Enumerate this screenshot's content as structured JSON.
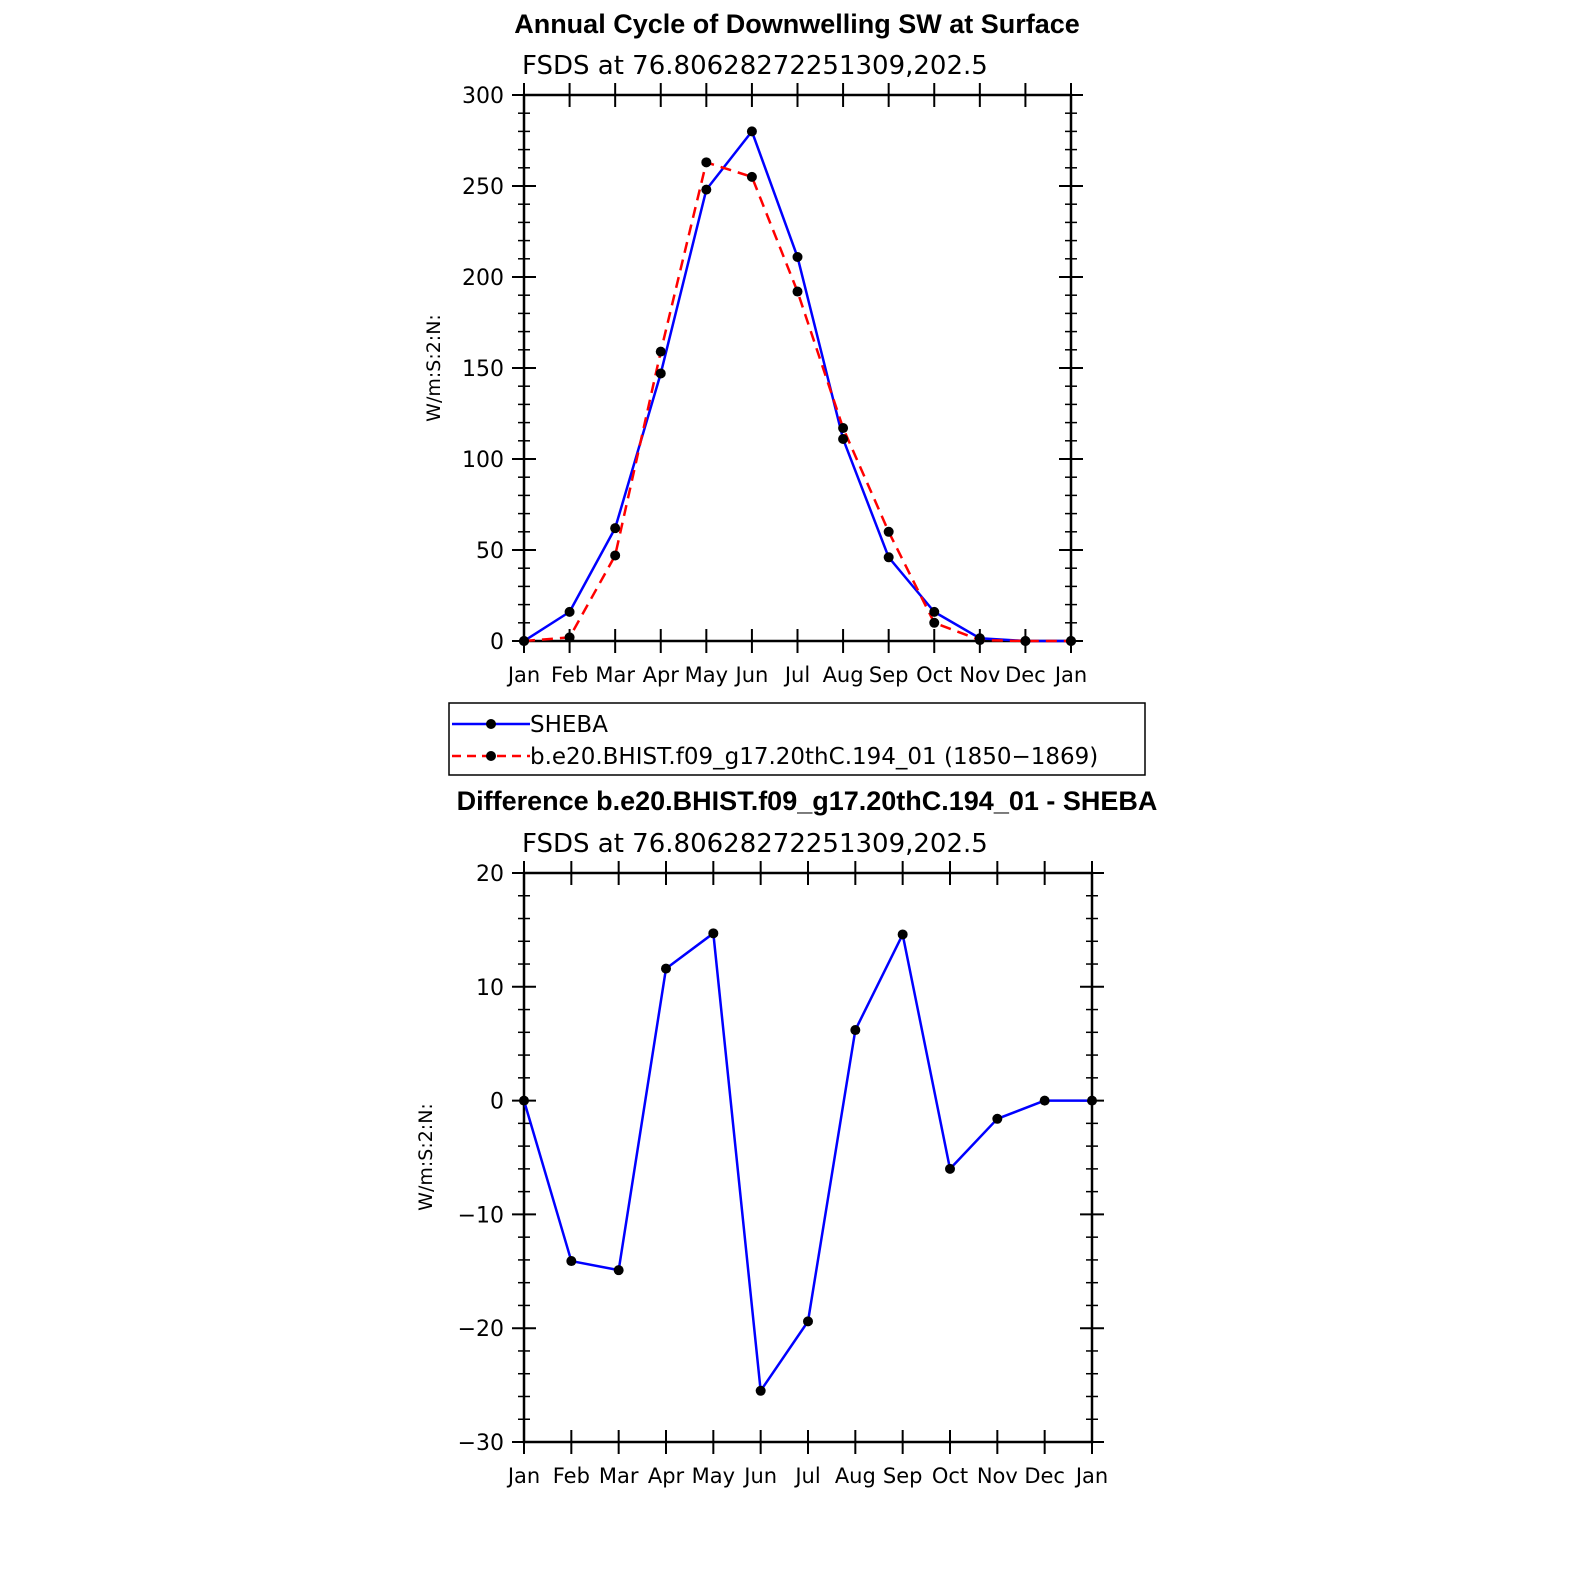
{
  "chart_data": [
    {
      "type": "line",
      "title": "Annual Cycle of Downwelling SW at Surface",
      "subtitle": "FSDS at 76.80628272251309,202.5",
      "xlabel": "",
      "ylabel": "W/m:S:2:N:",
      "categories": [
        "Jan",
        "Feb",
        "Mar",
        "Apr",
        "May",
        "Jun",
        "Jul",
        "Aug",
        "Sep",
        "Oct",
        "Nov",
        "Dec",
        "Jan"
      ],
      "ylim": [
        0,
        300
      ],
      "yticks": [
        "0",
        "50",
        "100",
        "150",
        "200",
        "250",
        "300"
      ],
      "series": [
        {
          "name": "SHEBA",
          "color": "#0000ff",
          "style": "solid",
          "values": [
            0,
            16,
            62,
            147,
            248,
            280,
            211,
            111,
            46,
            16,
            1.5,
            0,
            0
          ]
        },
        {
          "name": "b.e20.BHIST.f09_g17.20thC.194_01 (1850−1869)",
          "color": "#ff0000",
          "style": "dashed",
          "values": [
            0,
            2,
            47,
            159,
            263,
            255,
            192,
            117,
            60,
            10,
            0.5,
            0,
            0
          ]
        }
      ],
      "legend": "below"
    },
    {
      "type": "line",
      "title": "Difference b.e20.BHIST.f09_g17.20thC.194_01 - SHEBA",
      "subtitle": "FSDS at 76.80628272251309,202.5",
      "xlabel": "",
      "ylabel": "W/m:S:2:N:",
      "categories": [
        "Jan",
        "Feb",
        "Mar",
        "Apr",
        "May",
        "Jun",
        "Jul",
        "Aug",
        "Sep",
        "Oct",
        "Nov",
        "Dec",
        "Jan"
      ],
      "ylim": [
        -30,
        20
      ],
      "yticks": [
        "−30",
        "−20",
        "−10",
        "0",
        "10",
        "20"
      ],
      "series": [
        {
          "color": "#0000ff",
          "style": "solid",
          "values": [
            0,
            -14.1,
            -14.9,
            11.6,
            14.7,
            -25.5,
            -19.4,
            6.2,
            14.6,
            -6.0,
            -1.6,
            0,
            0
          ]
        }
      ]
    }
  ]
}
